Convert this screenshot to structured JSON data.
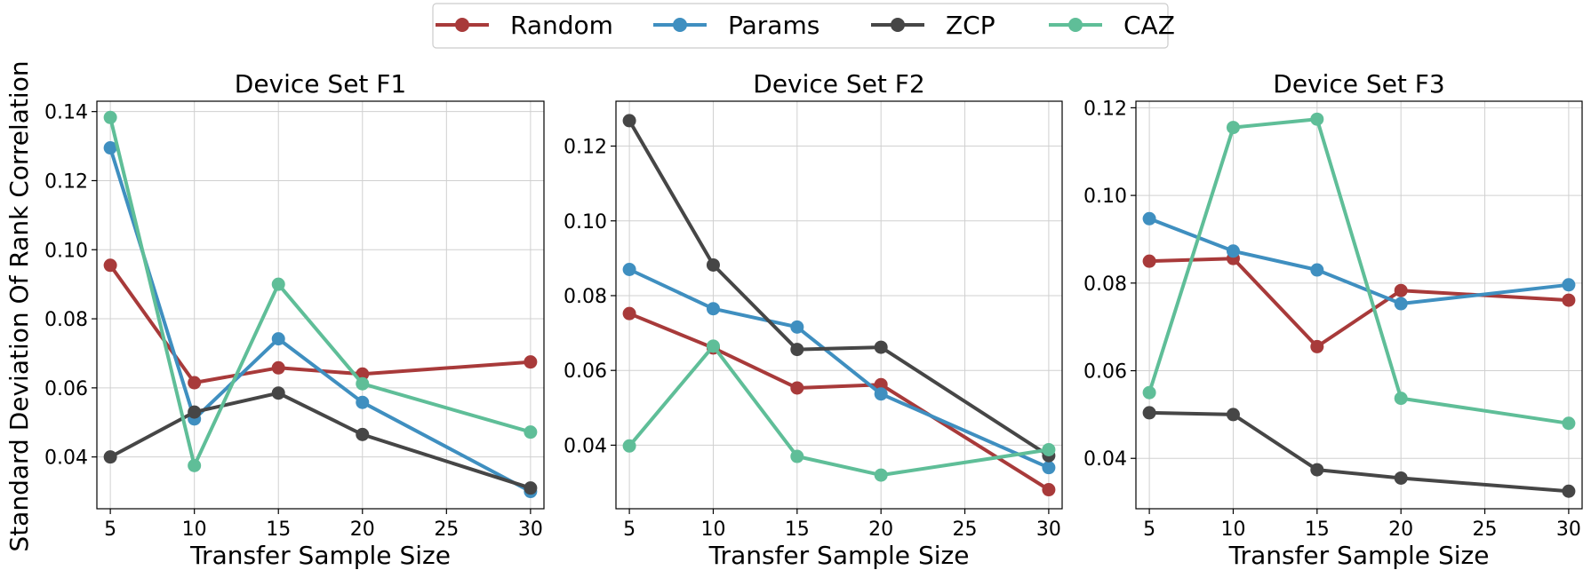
{
  "legend": [
    {
      "name": "Random",
      "color": "#a83a3a"
    },
    {
      "name": "Params",
      "color": "#3f8fc0"
    },
    {
      "name": "ZCP",
      "color": "#464646"
    },
    {
      "name": "CAZ",
      "color": "#5fbe98"
    }
  ],
  "ylabel": "Standard Deviation Of Rank Correlation",
  "chart_data": [
    {
      "type": "line",
      "title": "Device Set F1",
      "xlabel": "Transfer Sample Size",
      "x": [
        5,
        10,
        15,
        20,
        30
      ],
      "xlim": [
        4.2,
        30.8
      ],
      "ylim": [
        0.025,
        0.143
      ],
      "xticks": [
        5,
        10,
        15,
        20,
        25,
        30
      ],
      "yticks": [
        0.04,
        0.06,
        0.08,
        0.1,
        0.12,
        0.14
      ],
      "yticklabels": [
        "0.04",
        "0.06",
        "0.08",
        "0.10",
        "0.12",
        "0.14"
      ],
      "grid": true,
      "series": [
        {
          "name": "Random",
          "values": [
            0.0955,
            0.0615,
            0.0658,
            0.064,
            0.0675
          ]
        },
        {
          "name": "Params",
          "values": [
            0.1295,
            0.051,
            0.0742,
            0.0558,
            0.03
          ]
        },
        {
          "name": "ZCP",
          "values": [
            0.04,
            0.053,
            0.0585,
            0.0465,
            0.031
          ]
        },
        {
          "name": "CAZ",
          "values": [
            0.1383,
            0.0375,
            0.09,
            0.0612,
            0.0472
          ]
        }
      ]
    },
    {
      "type": "line",
      "title": "Device Set F2",
      "xlabel": "Transfer Sample Size",
      "x": [
        5,
        10,
        15,
        20,
        30
      ],
      "xlim": [
        4.2,
        30.8
      ],
      "ylim": [
        0.023,
        0.132
      ],
      "xticks": [
        5,
        10,
        15,
        20,
        25,
        30
      ],
      "yticks": [
        0.04,
        0.06,
        0.08,
        0.1,
        0.12
      ],
      "yticklabels": [
        "0.04",
        "0.06",
        "0.08",
        "0.10",
        "0.12"
      ],
      "grid": true,
      "series": [
        {
          "name": "Random",
          "values": [
            0.0752,
            0.066,
            0.0553,
            0.0562,
            0.0281
          ]
        },
        {
          "name": "Params",
          "values": [
            0.087,
            0.0765,
            0.0716,
            0.0537,
            0.034
          ]
        },
        {
          "name": "ZCP",
          "values": [
            0.1268,
            0.0882,
            0.0656,
            0.0662,
            0.0372
          ]
        },
        {
          "name": "CAZ",
          "values": [
            0.0398,
            0.0665,
            0.037,
            0.032,
            0.0388
          ]
        }
      ]
    },
    {
      "type": "line",
      "title": "Device Set F3",
      "xlabel": "Transfer Sample Size",
      "x": [
        5,
        10,
        15,
        20,
        30
      ],
      "xlim": [
        4.2,
        30.8
      ],
      "ylim": [
        0.0285,
        0.1215
      ],
      "xticks": [
        5,
        10,
        15,
        20,
        25,
        30
      ],
      "yticks": [
        0.04,
        0.06,
        0.08,
        0.1,
        0.12
      ],
      "yticklabels": [
        "0.04",
        "0.06",
        "0.08",
        "0.10",
        "0.12"
      ],
      "grid": true,
      "series": [
        {
          "name": "Random",
          "values": [
            0.085,
            0.0856,
            0.0655,
            0.0783,
            0.0761
          ]
        },
        {
          "name": "Params",
          "values": [
            0.0947,
            0.0873,
            0.083,
            0.0753,
            0.0796
          ]
        },
        {
          "name": "ZCP",
          "values": [
            0.0504,
            0.05,
            0.0374,
            0.0355,
            0.0325
          ]
        },
        {
          "name": "CAZ",
          "values": [
            0.055,
            0.1155,
            0.1174,
            0.0537,
            0.048
          ]
        }
      ]
    }
  ]
}
